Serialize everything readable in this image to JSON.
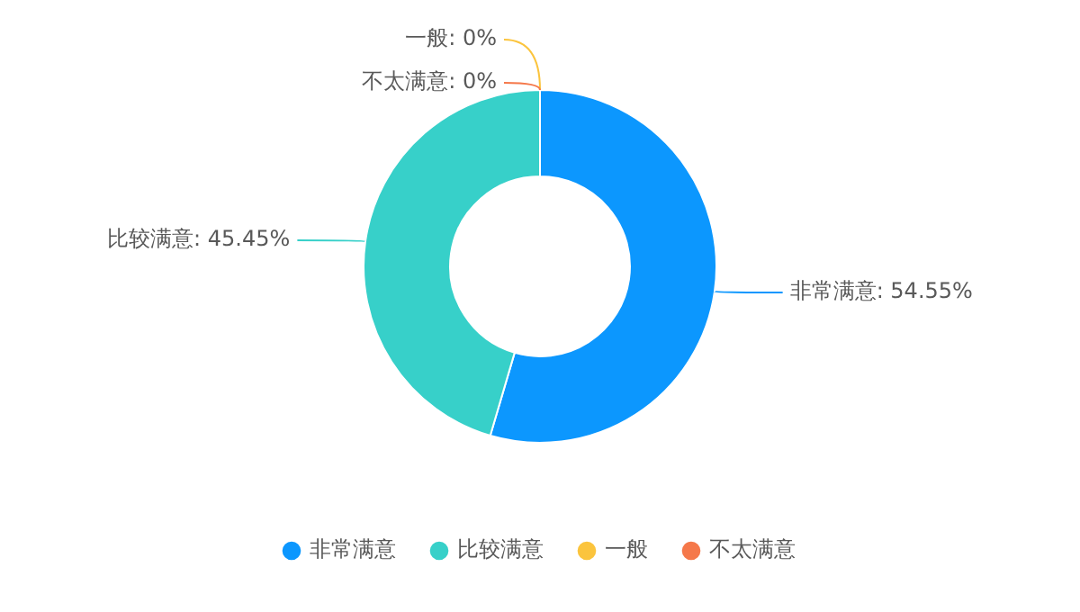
{
  "chart_data": {
    "type": "donut",
    "categories": [
      "非常满意",
      "比较满意",
      "一般",
      "不太满意"
    ],
    "values": [
      54.55,
      45.45,
      0,
      0
    ],
    "value_labels": [
      "非常满意: 54.55%",
      "比较满意: 45.45%",
      "一般: 0%",
      "不太满意: 0%"
    ],
    "colors": [
      "#0c97fe",
      "#37d0c9",
      "#fbc43d",
      "#f5784a"
    ],
    "legend": "bottom"
  }
}
